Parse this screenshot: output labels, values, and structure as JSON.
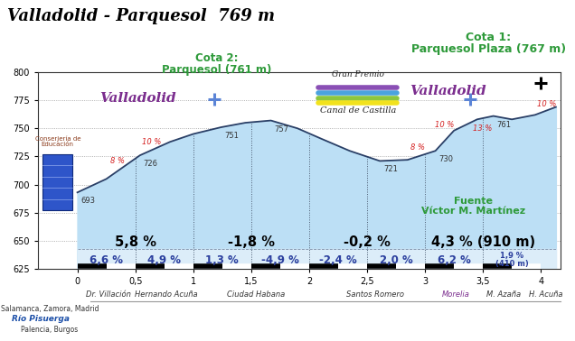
{
  "chart_data": {
    "type": "area",
    "title": "Valladolid - Parquesol  769 m",
    "x": [
      0,
      0.25,
      0.54,
      0.8,
      1.0,
      1.24,
      1.45,
      1.67,
      1.9,
      2.1,
      2.35,
      2.61,
      2.85,
      3.09,
      3.25,
      3.45,
      3.59,
      3.75,
      3.95,
      4.13
    ],
    "values": [
      693,
      705,
      726,
      738,
      745,
      751,
      755,
      757,
      750,
      741,
      730,
      721,
      722,
      730,
      748,
      758,
      761,
      758,
      762,
      769
    ],
    "color": "#bcdff5",
    "xlim": [
      -0.34,
      4.17
    ],
    "ylim": [
      625,
      800
    ],
    "xticks": [
      0,
      {
        "value": 0.5,
        "label": "0,5"
      },
      1,
      {
        "value": 1.5,
        "label": "1,5"
      },
      2,
      {
        "value": 2.5,
        "label": "2,5"
      },
      3,
      {
        "value": 3.5,
        "label": "3,5"
      },
      4
    ],
    "yticks": [
      625,
      650,
      675,
      700,
      725,
      750,
      775,
      800
    ],
    "grid": true,
    "elevation_labels": [
      {
        "x": 0,
        "value": 693
      },
      {
        "x": 0.54,
        "value": 726
      },
      {
        "x": 1.24,
        "value": 751
      },
      {
        "x": 1.67,
        "value": 757
      },
      {
        "x": 2.61,
        "value": 721
      },
      {
        "x": 3.09,
        "value": 730
      },
      {
        "x": 3.59,
        "value": 761
      }
    ],
    "grade_labels": [
      {
        "x": 0.37,
        "label": "8 %"
      },
      {
        "x": 0.64,
        "label": "10 %"
      },
      {
        "x": 3.0,
        "label": "8 %"
      },
      {
        "x": 3.27,
        "label": "10 %"
      },
      {
        "x": 3.4,
        "label": "13 %"
      },
      {
        "x": 4.05,
        "label": "10 %"
      }
    ],
    "km_segments": [
      {
        "start": 0,
        "end": 1,
        "label": "5,8 %"
      },
      {
        "start": 1,
        "end": 2,
        "label": "-1,8 %"
      },
      {
        "start": 2,
        "end": 3,
        "label": "-0,2 %"
      },
      {
        "start": 3,
        "end": 4,
        "label": "4,3 % (910 m)"
      }
    ],
    "half_km_segments": [
      {
        "start": 0,
        "end": 0.5,
        "label": "6,6 %"
      },
      {
        "start": 0.5,
        "end": 1,
        "label": "4,9 %"
      },
      {
        "start": 1,
        "end": 1.5,
        "label": "1,3 %"
      },
      {
        "start": 1.5,
        "end": 2,
        "label": "-4,9 %"
      },
      {
        "start": 2,
        "end": 2.5,
        "label": "-2,4 %"
      },
      {
        "start": 2.5,
        "end": 3,
        "label": "2,0 %"
      },
      {
        "start": 3,
        "end": 3.5,
        "label": "6,2 %"
      },
      {
        "start": 3.5,
        "end": 4,
        "label": "1,9 %\n(410 m)"
      }
    ],
    "streets": [
      {
        "x": 0.27,
        "label": "Dr. Villación"
      },
      {
        "x": 0.77,
        "label": "Hernando Acuña"
      },
      {
        "x": 1.54,
        "label": "Ciudad Habana"
      },
      {
        "x": 2.57,
        "label": "Santos Romero"
      },
      {
        "x": 3.27,
        "label": "Morelia"
      },
      {
        "x": 3.68,
        "label": "M. Azaña"
      },
      {
        "x": 4.04,
        "label": "H. Acuña"
      }
    ],
    "annotations": [
      "Valladolid",
      "Valladolid",
      "Cota 2:\nParquesol (761 m)",
      "Cota 1:\nParquesol Plaza (767 m)",
      "Conserjería de\nEducación",
      "Gran Premio",
      "Canal de Castilla",
      "Fuente\nVíctor M. Martínez",
      "Salamanca, Zamora, Madrid",
      "Río Pisuerga",
      "Palencia, Burgos"
    ]
  }
}
